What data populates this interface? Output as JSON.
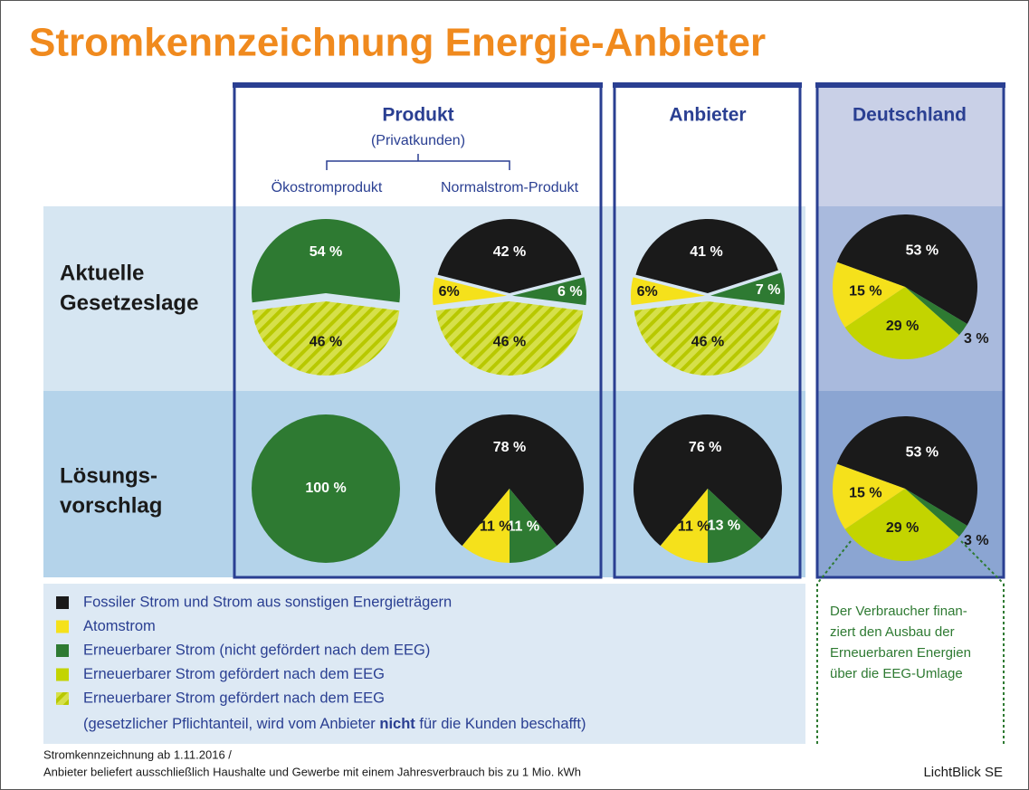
{
  "title": "Stromkennzeichnung Energie-Anbieter",
  "columns": {
    "produkt": "Produkt",
    "privatkunden": "(Privatkunden)",
    "oeko": "Ökostromprodukt",
    "normal": "Normalstrom-Produkt",
    "anbieter": "Anbieter",
    "deutschland": "Deutschland"
  },
  "rows": [
    [
      "Aktuelle",
      "Gesetzeslage"
    ],
    [
      "Lösungs-",
      "vorschlag"
    ]
  ],
  "legend": [
    {
      "label": "Fossiler Strom und Strom aus sonstigen Energieträgern",
      "color": "#1a1a1a"
    },
    {
      "label": "Atomstrom",
      "color": "#f5e11b"
    },
    {
      "label": "Erneuerbarer Strom (nicht gefördert nach dem EEG)",
      "color": "#2e7a32"
    },
    {
      "label": "Erneuerbarer Strom gefördert nach dem EEG",
      "color": "#c3d400"
    },
    {
      "label": "Erneuerbarer Strom gefördert nach dem EEG",
      "color": "#c3d400",
      "hatched": true,
      "detail": [
        "(gesetzlicher Pflichtanteil, wird vom Anbieter ",
        "nicht",
        " für die Kunden beschafft)"
      ]
    }
  ],
  "note": [
    "Der Verbraucher finan-",
    "ziert den Ausbau der",
    "Erneuerbaren Energien",
    "über die EEG-Umlage"
  ],
  "footer": [
    "Stromkennzeichnung ab 1.11.2016 /",
    "Anbieter beliefert ausschließlich Haushalte und Gewerbe mit einem Jahresverbrauch bis zu 1 Mio. kWh"
  ],
  "source": "LichtBlick SE",
  "chart_data": [
    {
      "type": "pie",
      "values": [
        46,
        54
      ],
      "value_labels": [
        "46 %",
        "54 %"
      ],
      "colors": [
        "#c3d400",
        "#2e7a32"
      ],
      "hatched": [
        true,
        false
      ],
      "startangle": 7.2,
      "explode_hatched": true
    },
    {
      "type": "pie",
      "values": [
        46,
        6,
        42,
        6
      ],
      "value_labels": [
        "46 %",
        "6%",
        "42 %",
        "6 %"
      ],
      "colors": [
        "#c3d400",
        "#f5e11b",
        "#1a1a1a",
        "#2e7a32"
      ],
      "hatched": [
        true,
        false,
        false,
        false
      ],
      "startangle": 7.2,
      "explode_hatched": true
    },
    {
      "type": "pie",
      "values": [
        46,
        6,
        41,
        7
      ],
      "value_labels": [
        "46 %",
        "6%",
        "41 %",
        "7 %"
      ],
      "colors": [
        "#c3d400",
        "#f5e11b",
        "#1a1a1a",
        "#2e7a32"
      ],
      "hatched": [
        true,
        false,
        false,
        false
      ],
      "startangle": 7.2,
      "explode_hatched": true
    },
    {
      "type": "pie",
      "values": [
        53,
        3,
        29,
        15
      ],
      "value_labels": [
        "53 %",
        "3 %",
        "29 %",
        "15 %"
      ],
      "colors": [
        "#1a1a1a",
        "#2e7a32",
        "#c3d400",
        "#f5e11b"
      ],
      "hatched": [
        false,
        false,
        false,
        false
      ],
      "startangle": -160,
      "explode_hatched": false
    },
    {
      "type": "pie",
      "values": [
        100
      ],
      "value_labels": [
        "100 %"
      ],
      "colors": [
        "#2e7a32"
      ],
      "hatched": [
        false
      ],
      "startangle": 0,
      "explode_hatched": false
    },
    {
      "type": "pie",
      "values": [
        78,
        11,
        11
      ],
      "value_labels": [
        "78 %",
        "11 %",
        "11 %"
      ],
      "colors": [
        "#1a1a1a",
        "#2e7a32",
        "#f5e11b"
      ],
      "hatched": [
        false,
        false,
        false
      ],
      "startangle": 129.6,
      "explode_hatched": false
    },
    {
      "type": "pie",
      "values": [
        76,
        13,
        11
      ],
      "value_labels": [
        "76 %",
        "13 %",
        "11 %"
      ],
      "colors": [
        "#1a1a1a",
        "#2e7a32",
        "#f5e11b"
      ],
      "hatched": [
        false,
        false,
        false
      ],
      "startangle": 129.6,
      "explode_hatched": false
    },
    {
      "type": "pie",
      "values": [
        53,
        3,
        29,
        15
      ],
      "value_labels": [
        "53 %",
        "3 %",
        "29 %",
        "15 %"
      ],
      "colors": [
        "#1a1a1a",
        "#2e7a32",
        "#c3d400",
        "#f5e11b"
      ],
      "hatched": [
        false,
        false,
        false,
        false
      ],
      "startangle": -160,
      "explode_hatched": false
    }
  ]
}
